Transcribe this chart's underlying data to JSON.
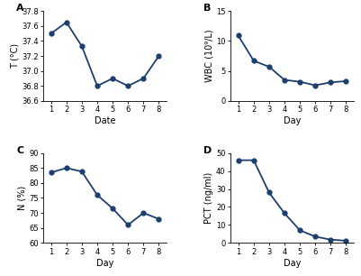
{
  "A": {
    "label": "A",
    "x": [
      1,
      2,
      3,
      4,
      5,
      6,
      7,
      8
    ],
    "y": [
      37.5,
      37.65,
      37.33,
      36.8,
      36.9,
      36.8,
      36.9,
      37.2
    ],
    "xlabel": "Date",
    "ylabel": "T (°C)",
    "ylim": [
      36.6,
      37.8
    ],
    "yticks": [
      36.6,
      36.8,
      37.0,
      37.2,
      37.4,
      37.6,
      37.8
    ]
  },
  "B": {
    "label": "B",
    "x": [
      1,
      2,
      3,
      4,
      5,
      6,
      7,
      8
    ],
    "y": [
      10.9,
      6.7,
      5.7,
      3.5,
      3.2,
      2.6,
      3.1,
      3.3
    ],
    "xlabel": "Day",
    "ylabel": "WBC (10⁹/L)",
    "ylim": [
      0,
      15
    ],
    "yticks": [
      0,
      5,
      10,
      15
    ]
  },
  "C": {
    "label": "C",
    "x": [
      1,
      2,
      3,
      4,
      5,
      6,
      7,
      8
    ],
    "y": [
      83.5,
      85.0,
      83.8,
      76.0,
      71.5,
      66.0,
      70.0,
      68.0
    ],
    "xlabel": "Day",
    "ylabel": "N (%)",
    "ylim": [
      60,
      90
    ],
    "yticks": [
      60,
      65,
      70,
      75,
      80,
      85,
      90
    ]
  },
  "D": {
    "label": "D",
    "x": [
      1,
      2,
      3,
      4,
      5,
      6,
      7,
      8
    ],
    "y": [
      46.0,
      46.0,
      28.0,
      16.5,
      7.0,
      3.5,
      1.8,
      1.2
    ],
    "xlabel": "Day",
    "ylabel": "PCT (ng/ml)",
    "ylim": [
      0,
      50
    ],
    "yticks": [
      0,
      10,
      20,
      30,
      40,
      50
    ]
  },
  "line_color": "#1c3f6e",
  "marker": "o",
  "markersize": 3.5,
  "linewidth": 1.3,
  "label_fontsize": 7,
  "tick_fontsize": 6,
  "panel_label_fontsize": 8,
  "background_color": "#ffffff"
}
